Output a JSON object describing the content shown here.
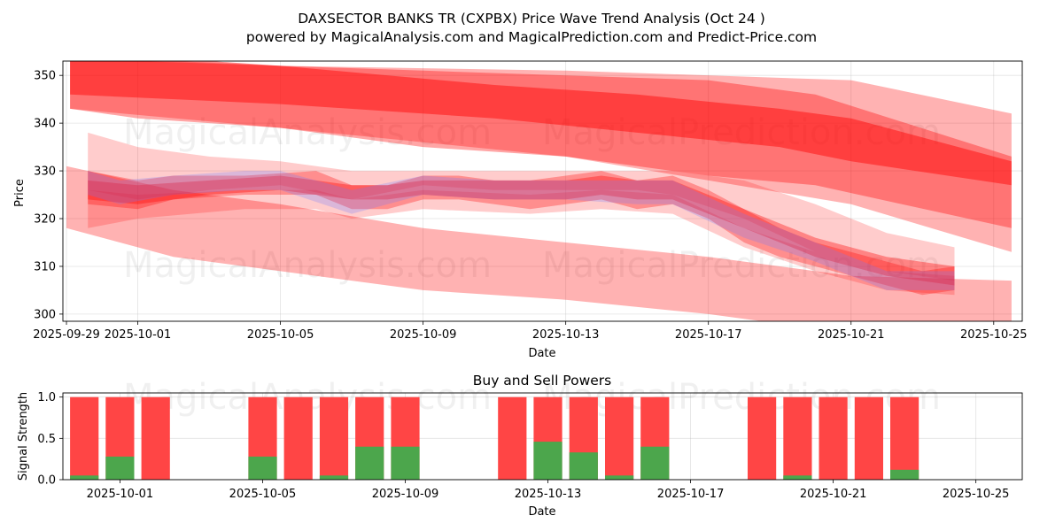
{
  "colors": {
    "red_band": "#ff0000",
    "blue_band": "#6a78ff",
    "sell_bar": "#ff4545",
    "buy_bar": "#4ca64c"
  },
  "chart_data": [
    {
      "type": "area",
      "title": "DAXSECTOR BANKS TR (CXPBX) Price Wave Trend Analysis (Oct 24 )",
      "subtitle": "powered by MagicalAnalysis.com and MagicalPrediction.com and Predict-Price.com",
      "xlabel": "Date",
      "ylabel": "Price",
      "x_ticks": [
        "2025-09-29",
        "2025-10-01",
        "2025-10-05",
        "2025-10-09",
        "2025-10-13",
        "2025-10-17",
        "2025-10-21",
        "2025-10-25"
      ],
      "y_ticks": [
        300,
        310,
        320,
        330,
        340,
        350
      ],
      "xlim": [
        -0.1,
        26.8
      ],
      "ylim": [
        298.5,
        353
      ],
      "grid": true,
      "watermarks": [
        "MagicalAnalysis.com",
        "MagicalPrediction.com"
      ],
      "series": [
        {
          "name": "upper-channel",
          "x": [
            0.1,
            6,
            14,
            22,
            26.5
          ],
          "lower": [
            343,
            339,
            333,
            323,
            313
          ],
          "upper": [
            354,
            352,
            351,
            349,
            342
          ],
          "opacity": 0.3
        },
        {
          "name": "upper-channel-core",
          "x": [
            0.1,
            2,
            6,
            10,
            14,
            18,
            21,
            26.5
          ],
          "lower": [
            343,
            341,
            339,
            335,
            333,
            329,
            327,
            318
          ],
          "upper": [
            355,
            353,
            352,
            351,
            350,
            349,
            346,
            333
          ],
          "opacity": 0.35
        },
        {
          "name": "upper-trend-band",
          "x": [
            0.1,
            6,
            12,
            16,
            20,
            22,
            26.5
          ],
          "lower": [
            346,
            344,
            341,
            338,
            335,
            332,
            327
          ],
          "upper": [
            355,
            352,
            348,
            346,
            343,
            341,
            332
          ],
          "opacity": 0.45
        },
        {
          "name": "lower-channel",
          "x": [
            0,
            3,
            6,
            10,
            14,
            18,
            22,
            26.5
          ],
          "lower": [
            318,
            312,
            309,
            305,
            303,
            300,
            296,
            292
          ],
          "upper": [
            331,
            326,
            323,
            318,
            315,
            312,
            308,
            307
          ],
          "opacity": 0.3
        },
        {
          "name": "price-wave-1",
          "x": [
            0.6,
            2,
            3,
            5,
            7,
            8,
            9,
            10,
            11,
            12,
            13,
            14,
            15,
            16,
            17,
            18,
            19,
            20,
            21,
            22,
            23,
            24,
            24.9
          ],
          "lower": [
            323,
            322,
            324,
            325,
            325,
            322,
            322,
            324,
            324,
            323,
            322,
            323,
            324,
            322,
            323,
            320,
            315,
            312,
            310,
            308,
            306,
            304,
            305
          ],
          "upper": [
            330,
            328,
            329,
            329,
            330,
            327,
            327,
            329,
            329,
            328,
            328,
            329,
            330,
            328,
            329,
            326,
            322,
            318,
            315,
            313,
            311,
            309,
            310
          ],
          "opacity": 0.3
        },
        {
          "name": "price-wave-2",
          "x": [
            0.6,
            2,
            4,
            6,
            7,
            8,
            9,
            10,
            12,
            14,
            15,
            16,
            17,
            19,
            21,
            23,
            24.9
          ],
          "lower": [
            324,
            323,
            325,
            326,
            325,
            324,
            324,
            325,
            324,
            324,
            325,
            324,
            324,
            318,
            312,
            308,
            306
          ],
          "upper": [
            328,
            327,
            328,
            329,
            328,
            327,
            327,
            328,
            328,
            328,
            329,
            328,
            328,
            322,
            316,
            312,
            310
          ],
          "opacity": 0.35
        },
        {
          "name": "price-wave-3",
          "x": [
            0.6,
            2,
            4,
            6,
            8,
            10,
            12,
            14,
            16,
            17,
            19,
            21,
            22,
            23,
            24.9
          ],
          "lower": [
            326,
            324,
            326,
            327,
            324,
            327,
            326,
            326,
            326,
            325,
            320,
            313,
            311,
            309,
            307
          ],
          "upper": [
            338,
            335,
            333,
            332,
            330,
            330,
            330,
            330,
            330,
            330,
            328,
            323,
            320,
            317,
            314
          ],
          "opacity": 0.2
        },
        {
          "name": "price-wave-4",
          "x": [
            0.6,
            2,
            5,
            7,
            8,
            10,
            13,
            15,
            17,
            19,
            21,
            23,
            24.9
          ],
          "lower": [
            318,
            320,
            322,
            322,
            320,
            322,
            321,
            322,
            321,
            314,
            309,
            305,
            304
          ],
          "upper": [
            326,
            325,
            326,
            326,
            324,
            326,
            325,
            326,
            325,
            318,
            313,
            309,
            308
          ],
          "opacity": 0.2
        },
        {
          "name": "price-wave-blue",
          "x": [
            0.6,
            1.5,
            3,
            5,
            6,
            8,
            10,
            12,
            14,
            16,
            17,
            19,
            21,
            22,
            23,
            24.9
          ],
          "lower": [
            325,
            323,
            325,
            326,
            326,
            321,
            325,
            324,
            324,
            323,
            323,
            316,
            311,
            308,
            305,
            305
          ],
          "upper": [
            330,
            328,
            329,
            330,
            330,
            326,
            329,
            328,
            328,
            328,
            328,
            321,
            315,
            312,
            309,
            309
          ],
          "opacity": 0.25,
          "color": "blue"
        }
      ]
    },
    {
      "type": "bar",
      "title": "Buy and Sell Powers",
      "xlabel": "Date",
      "ylabel": "Signal Strength",
      "x_ticks": [
        "2025-10-01",
        "2025-10-05",
        "2025-10-09",
        "2025-10-13",
        "2025-10-17",
        "2025-10-21",
        "2025-10-25"
      ],
      "y_ticks": [
        "0.0",
        "0.5",
        "1.0"
      ],
      "xlim": [
        -0.6,
        26.3
      ],
      "ylim": [
        0,
        1.05
      ],
      "categories": [
        "2025-09-30",
        "2025-10-01",
        "2025-10-02",
        "2025-10-05",
        "2025-10-06",
        "2025-10-07",
        "2025-10-08",
        "2025-10-09",
        "2025-10-12",
        "2025-10-13",
        "2025-10-14",
        "2025-10-15",
        "2025-10-16",
        "2025-10-19",
        "2025-10-20",
        "2025-10-21",
        "2025-10-22",
        "2025-10-23"
      ],
      "x": [
        0,
        1,
        2,
        5,
        6,
        7,
        8,
        9,
        12,
        13,
        14,
        15,
        16,
        19,
        20,
        21,
        22,
        23
      ],
      "series": [
        {
          "name": "Sell Power",
          "values": [
            1,
            1,
            1,
            1,
            1,
            1,
            1,
            1,
            1,
            1,
            1,
            1,
            1,
            1,
            1,
            1,
            1,
            1
          ]
        },
        {
          "name": "Buy Power",
          "values": [
            0.05,
            0.28,
            0.0,
            0.28,
            0.0,
            0.05,
            0.4,
            0.4,
            0.0,
            0.46,
            0.33,
            0.05,
            0.4,
            0.0,
            0.05,
            0.0,
            0.0,
            0.12
          ]
        }
      ]
    }
  ]
}
